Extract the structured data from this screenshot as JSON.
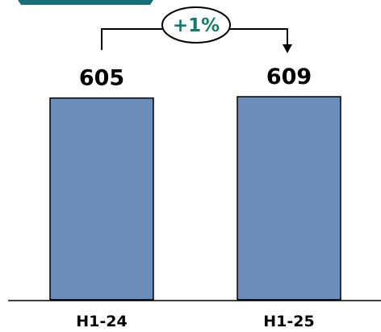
{
  "chart_data": {
    "type": "bar",
    "categories": [
      "H1-24",
      "H1-25"
    ],
    "values": [
      605,
      609
    ],
    "data_labels": [
      "605",
      "609"
    ],
    "change_label": "+1%",
    "title": "",
    "xlabel": "",
    "ylabel": "",
    "ylim": [
      0,
      609
    ],
    "grid": false,
    "legend": "none"
  },
  "colors": {
    "bar": "#6c8cba",
    "bar_border": "#000000",
    "change_text": "#1a7a6a",
    "header_accent": "#1a6e7a"
  }
}
